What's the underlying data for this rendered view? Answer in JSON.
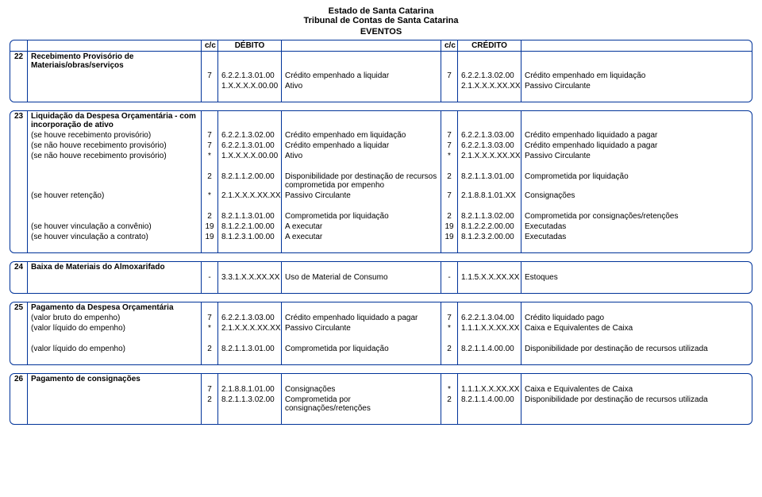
{
  "header": {
    "line1": "Estado de Santa Catarina",
    "line2": "Tribunal de Contas de Santa Catarina",
    "line3": "EVENTOS"
  },
  "thead": {
    "c1": "c/c",
    "c2": "DÉBITO",
    "c3": "c/c",
    "c4": "CRÉDITO"
  },
  "sections": [
    {
      "num": "22",
      "title": "Recebimento Provisório de Materiais/obras/serviços",
      "rows": [
        {
          "sub": "",
          "dc": "7",
          "dcode": "6.2.2.1.3.01.00",
          "dtext": "Crédito empenhado a liquidar",
          "cc": "7",
          "ccode": "6.2.2.1.3.02.00",
          "ctext": "Crédito empenhado em liquidação"
        },
        {
          "sub": "",
          "dc": "",
          "dcode": "1.X.X.X.X.00.00",
          "dtext": "Ativo",
          "cc": "",
          "ccode": "2.1.X.X.X.XX.XX",
          "ctext": "Passivo Circulante"
        }
      ]
    },
    {
      "num": "23",
      "title": "Liquidação da Despesa Orçamentária - com incorporação de ativo",
      "rows": [
        {
          "sub": "(se houve recebimento provisório)",
          "dc": "7",
          "dcode": "6.2.2.1.3.02.00",
          "dtext": "Crédito empenhado em liquidação",
          "cc": "7",
          "ccode": "6.2.2.1.3.03.00",
          "ctext": "Crédito empenhado liquidado a pagar"
        },
        {
          "sub": "(se não houve recebimento provisório)",
          "dc": "7",
          "dcode": "6.2.2.1.3.01.00",
          "dtext": "Crédito empenhado a liquidar",
          "cc": "7",
          "ccode": "6.2.2.1.3.03.00",
          "ctext": "Crédito empenhado liquidado a pagar"
        },
        {
          "sub": "(se não houve recebimento provisório)",
          "dc": "*",
          "dcode": "1.X.X.X.X.00.00",
          "dtext": "Ativo",
          "cc": "*",
          "ccode": "2.1.X.X.X.XX.XX",
          "ctext": "Passivo Circulante"
        },
        {
          "spacer": true
        },
        {
          "sub": "",
          "dc": "2",
          "dcode": "8.2.1.1.2.00.00",
          "dtext": "Disponibilidade por destinação de recursos comprometida por empenho",
          "cc": "2",
          "ccode": "8.2.1.1.3.01.00",
          "ctext": "Comprometida por liquidação"
        },
        {
          "sub": "(se houver retenção)",
          "dc": "*",
          "dcode": "2.1.X.X.X.XX.XX",
          "dtext": "Passivo Circulante",
          "cc": "7",
          "ccode": "2.1.8.8.1.01.XX",
          "ctext": "Consignações"
        },
        {
          "spacer": true
        },
        {
          "sub": "",
          "dc": "2",
          "dcode": "8.2.1.1.3.01.00",
          "dtext": "Comprometida por liquidação",
          "cc": "2",
          "ccode": "8.2.1.1.3.02.00",
          "ctext": "Comprometida por consignações/retenções"
        },
        {
          "sub": "(se houver vinculação a convênio)",
          "dc": "19",
          "dcode": "8.1.2.2.1.00.00",
          "dtext": "A executar",
          "cc": "19",
          "ccode": "8.1.2.2.2.00.00",
          "ctext": "Executadas"
        },
        {
          "sub": "(se houver vinculação a contrato)",
          "dc": "19",
          "dcode": "8.1.2.3.1.00.00",
          "dtext": "A executar",
          "cc": "19",
          "ccode": "8.1.2.3.2.00.00",
          "ctext": "Executadas"
        }
      ]
    },
    {
      "num": "24",
      "title": "Baixa de Materiais do Almoxarifado",
      "rows": [
        {
          "sub": "",
          "dc": "-",
          "dcode": "3.3.1.X.X.XX.XX",
          "dtext": "Uso de Material de Consumo",
          "cc": "-",
          "ccode": "1.1.5.X.X.XX.XX",
          "ctext": "Estoques"
        }
      ]
    },
    {
      "num": "25",
      "title": "Pagamento da Despesa Orçamentária",
      "rows": [
        {
          "sub": "(valor bruto do empenho)",
          "dc": "7",
          "dcode": "6.2.2.1.3.03.00",
          "dtext": "Crédito empenhado liquidado a pagar",
          "cc": "7",
          "ccode": "6.2.2.1.3.04.00",
          "ctext": "Crédito liquidado pago"
        },
        {
          "sub": "(valor líquido do empenho)",
          "dc": "*",
          "dcode": "2.1.X.X.X.XX.XX",
          "dtext": "Passivo Circulante",
          "cc": "*",
          "ccode": "1.1.1.X.X.XX.XX",
          "ctext": "Caixa e Equivalentes de Caixa"
        },
        {
          "spacer": true
        },
        {
          "sub": "(valor líquido do empenho)",
          "dc": "2",
          "dcode": "8.2.1.1.3.01.00",
          "dtext": "Comprometida por liquidação",
          "cc": "2",
          "ccode": "8.2.1.1.4.00.00",
          "ctext": "Disponibilidade por destinação de recursos utilizada"
        }
      ]
    },
    {
      "num": "26",
      "title": "Pagamento de consignações",
      "rows": [
        {
          "sub": "",
          "dc": "7",
          "dcode": "2.1.8.8.1.01.00",
          "dtext": "Consignações",
          "cc": "*",
          "ccode": "1.1.1.X.X.XX.XX",
          "ctext": "Caixa e Equivalentes de Caixa"
        },
        {
          "sub": "",
          "dc": "2",
          "dcode": "8.2.1.1.3.02.00",
          "dtext": "Comprometida por consignações/retenções",
          "cc": "2",
          "ccode": "8.2.1.1.4.00.00",
          "ctext": "Disponibilidade por destinação de recursos utilizada"
        }
      ]
    }
  ]
}
